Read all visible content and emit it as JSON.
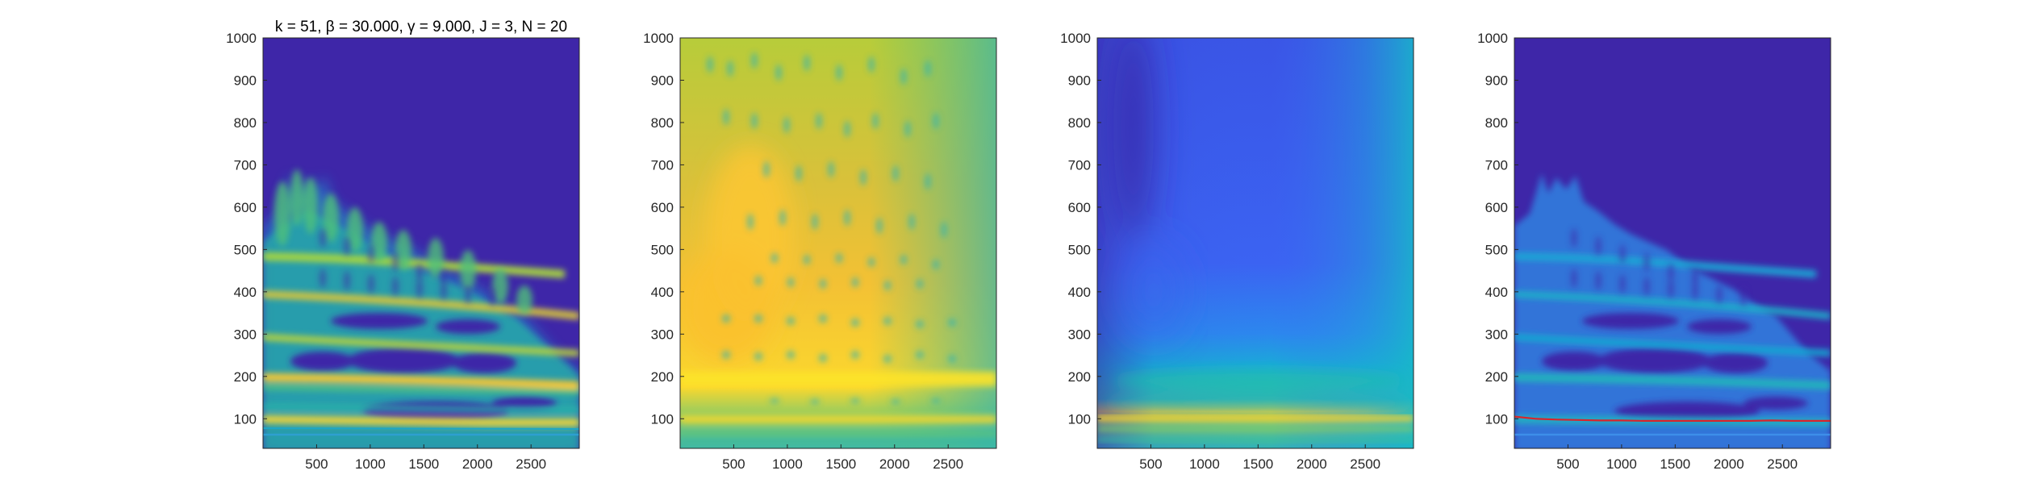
{
  "figure": {
    "title": "k = 51, β = 30.000, γ = 9.000, J = 3, N = 20"
  },
  "chart_data": [
    {
      "type": "heatmap",
      "title": "k = 51, β = 30.000, γ = 9.000, J = 3, N = 20",
      "xlabel": "",
      "ylabel": "",
      "xlim": [
        0,
        2950
      ],
      "ylim": [
        30,
        1000
      ],
      "xticks": [
        "500",
        "1000",
        "1500",
        "2000",
        "2500"
      ],
      "yticks": [
        "100",
        "200",
        "300",
        "400",
        "500",
        "600",
        "700",
        "800",
        "900",
        "1000"
      ],
      "colormap": "parula",
      "background_color": "#3e26a8",
      "description": "sparse time-frequency distribution with harmonic bands"
    },
    {
      "type": "heatmap",
      "title": "",
      "xlabel": "",
      "ylabel": "",
      "xlim": [
        0,
        2950
      ],
      "ylim": [
        30,
        1000
      ],
      "xticks": [
        "500",
        "1000",
        "1500",
        "2000",
        "2500"
      ],
      "yticks": [
        "100",
        "200",
        "300",
        "400",
        "500",
        "600",
        "700",
        "800",
        "900",
        "1000"
      ],
      "colormap": "parula",
      "description": "smooth spectrogram, yellow dominant with teal spots"
    },
    {
      "type": "heatmap",
      "title": "",
      "xlabel": "",
      "ylabel": "",
      "xlim": [
        0,
        2950
      ],
      "ylim": [
        30,
        1000
      ],
      "xticks": [
        "500",
        "1000",
        "1500",
        "2000",
        "2500"
      ],
      "yticks": [
        "100",
        "200",
        "300",
        "400",
        "500",
        "600",
        "700",
        "800",
        "900",
        "1000"
      ],
      "colormap": "parula",
      "description": "mostly blue spectrogram with bright band near 100"
    },
    {
      "type": "heatmap",
      "title": "",
      "xlabel": "",
      "ylabel": "",
      "xlim": [
        0,
        2950
      ],
      "ylim": [
        30,
        1000
      ],
      "xticks": [
        "500",
        "1000",
        "1500",
        "2000",
        "2500"
      ],
      "yticks": [
        "100",
        "200",
        "300",
        "400",
        "500",
        "600",
        "700",
        "800",
        "900",
        "1000"
      ],
      "colormap": "parula",
      "ridge": {
        "color": "#d9252b",
        "x": [
          0,
          200,
          400,
          600,
          800,
          1000,
          1200,
          1400,
          1600,
          1800,
          2000,
          2200,
          2400,
          2600,
          2800,
          2950
        ],
        "y": [
          105,
          100,
          98,
          97,
          96,
          96,
          95,
          95,
          95,
          95,
          95,
          95,
          96,
          95,
          95,
          95
        ]
      }
    }
  ]
}
